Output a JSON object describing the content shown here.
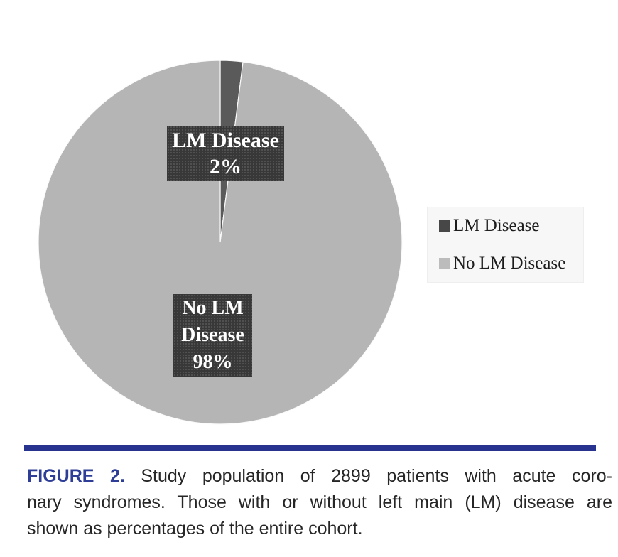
{
  "colors": {
    "pie_dark": "#5a5a5a",
    "pie_light": "#b5b5b5",
    "label_box_bg": "#383838",
    "label_text": "#ffffff",
    "legend_bg": "#f7f7f7",
    "legend_text": "#1d1d1d",
    "legend_swatch_dark": "#474747",
    "legend_swatch_light": "#bcbcbc",
    "divider_blue": "#27338f",
    "figure_label_blue": "#2e3d96",
    "caption_text": "#262626"
  },
  "chart_data": {
    "type": "pie",
    "title": "",
    "start_angle_deg": 0,
    "direction": "clockwise",
    "legend_position": "right",
    "slices": [
      {
        "label": "LM Disease",
        "value": 2,
        "color": "#5a5a5a"
      },
      {
        "label": "No LM Disease",
        "value": 98,
        "color": "#b5b5b5"
      }
    ]
  },
  "pie_labels": {
    "lm": {
      "line1": "LM Disease",
      "line2": "2%"
    },
    "no_lm": {
      "line1": "No LM",
      "line2": "Disease",
      "line3": "98%"
    }
  },
  "legend": {
    "items": [
      {
        "label": "LM Disease",
        "swatch": "#474747"
      },
      {
        "label": "No LM Disease",
        "swatch": "#bcbcbc"
      }
    ]
  },
  "caption": {
    "label": "FIGURE 2.",
    "line1_rest": "Study population of 2899 patients with acute coro-",
    "line2": "nary syndromes. Those with or without left main (LM) disease are",
    "line3": "shown as percentages of the entire cohort."
  }
}
